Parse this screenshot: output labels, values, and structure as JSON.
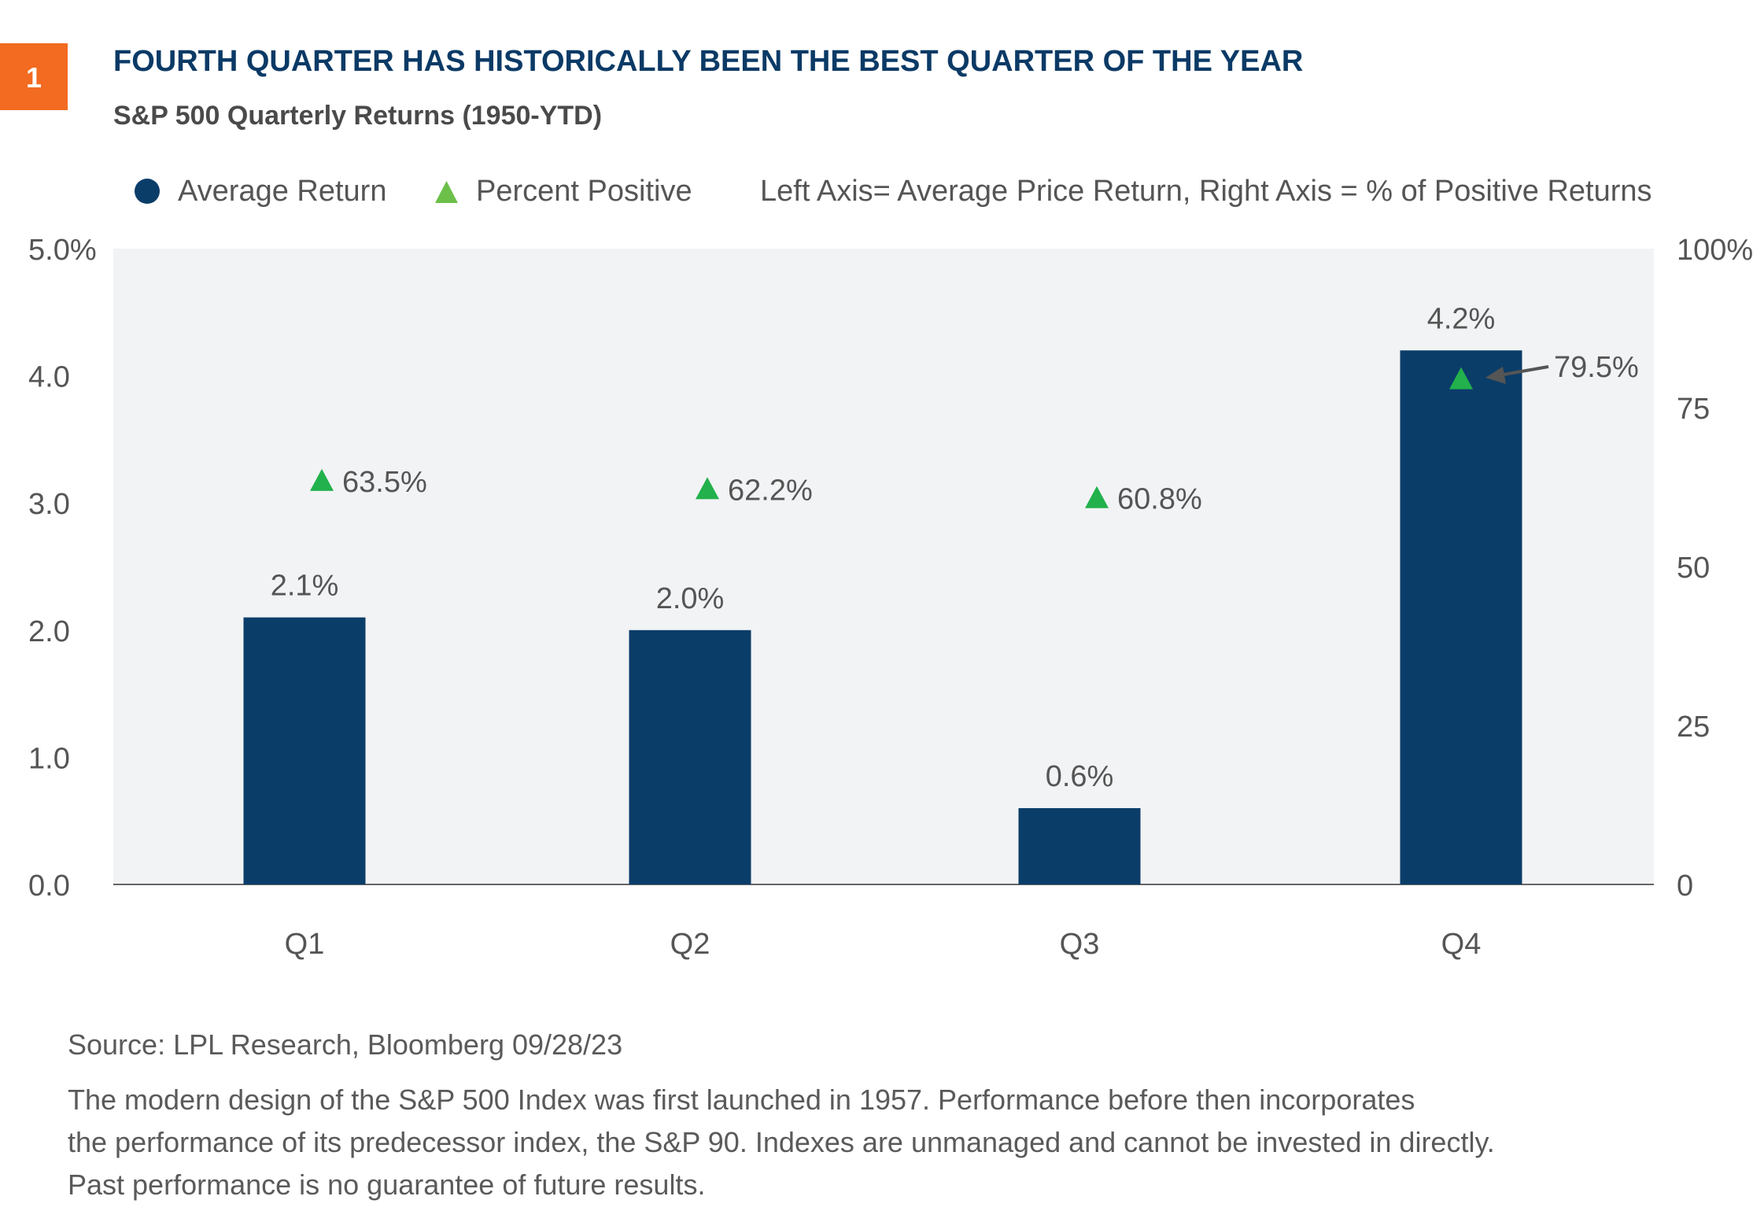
{
  "badge": "1",
  "title": "FOURTH QUARTER HAS HISTORICALLY BEEN THE BEST QUARTER OF THE YEAR",
  "subtitle": "S&P 500 Quarterly Returns (1950-YTD)",
  "legend_note": "Left Axis= Average Price Return, Right Axis = % of Positive Returns",
  "source": "Source: LPL Research, Bloomberg  09/28/23",
  "footnote": [
    "The modern design of the S&P 500 Index was first launched in 1957. Performance before then incorporates",
    "the performance of its predecessor index, the S&P 90. Indexes are unmanaged and cannot be invested in directly.",
    "Past performance is no guarantee of future results."
  ],
  "colors": {
    "bar": "#0b3d69",
    "triangle": "#22b14c",
    "badge": "#f26b21",
    "plot_bg": "#f2f3f5"
  },
  "chart_data": {
    "type": "bar",
    "categories": [
      "Q1",
      "Q2",
      "Q3",
      "Q4"
    ],
    "series": [
      {
        "name": "Average Return",
        "type": "bar",
        "axis": "left",
        "values": [
          2.1,
          2.0,
          0.6,
          4.2
        ],
        "labels": [
          "2.1%",
          "2.0%",
          "0.6%",
          "4.2%"
        ]
      },
      {
        "name": "Percent Positive",
        "type": "marker-triangle",
        "axis": "right",
        "values": [
          63.5,
          62.2,
          60.8,
          79.5
        ],
        "labels": [
          "63.5%",
          "62.2%",
          "60.8%",
          "79.5%"
        ]
      }
    ],
    "left_axis": {
      "range": [
        0,
        5
      ],
      "ticks": [
        "0.0",
        "1.0",
        "2.0",
        "3.0",
        "4.0",
        "5.0%"
      ]
    },
    "right_axis": {
      "range": [
        0,
        100
      ],
      "ticks": [
        "0",
        "25",
        "50",
        "75",
        "100%"
      ]
    },
    "legend_placement": "top",
    "grid": false
  }
}
